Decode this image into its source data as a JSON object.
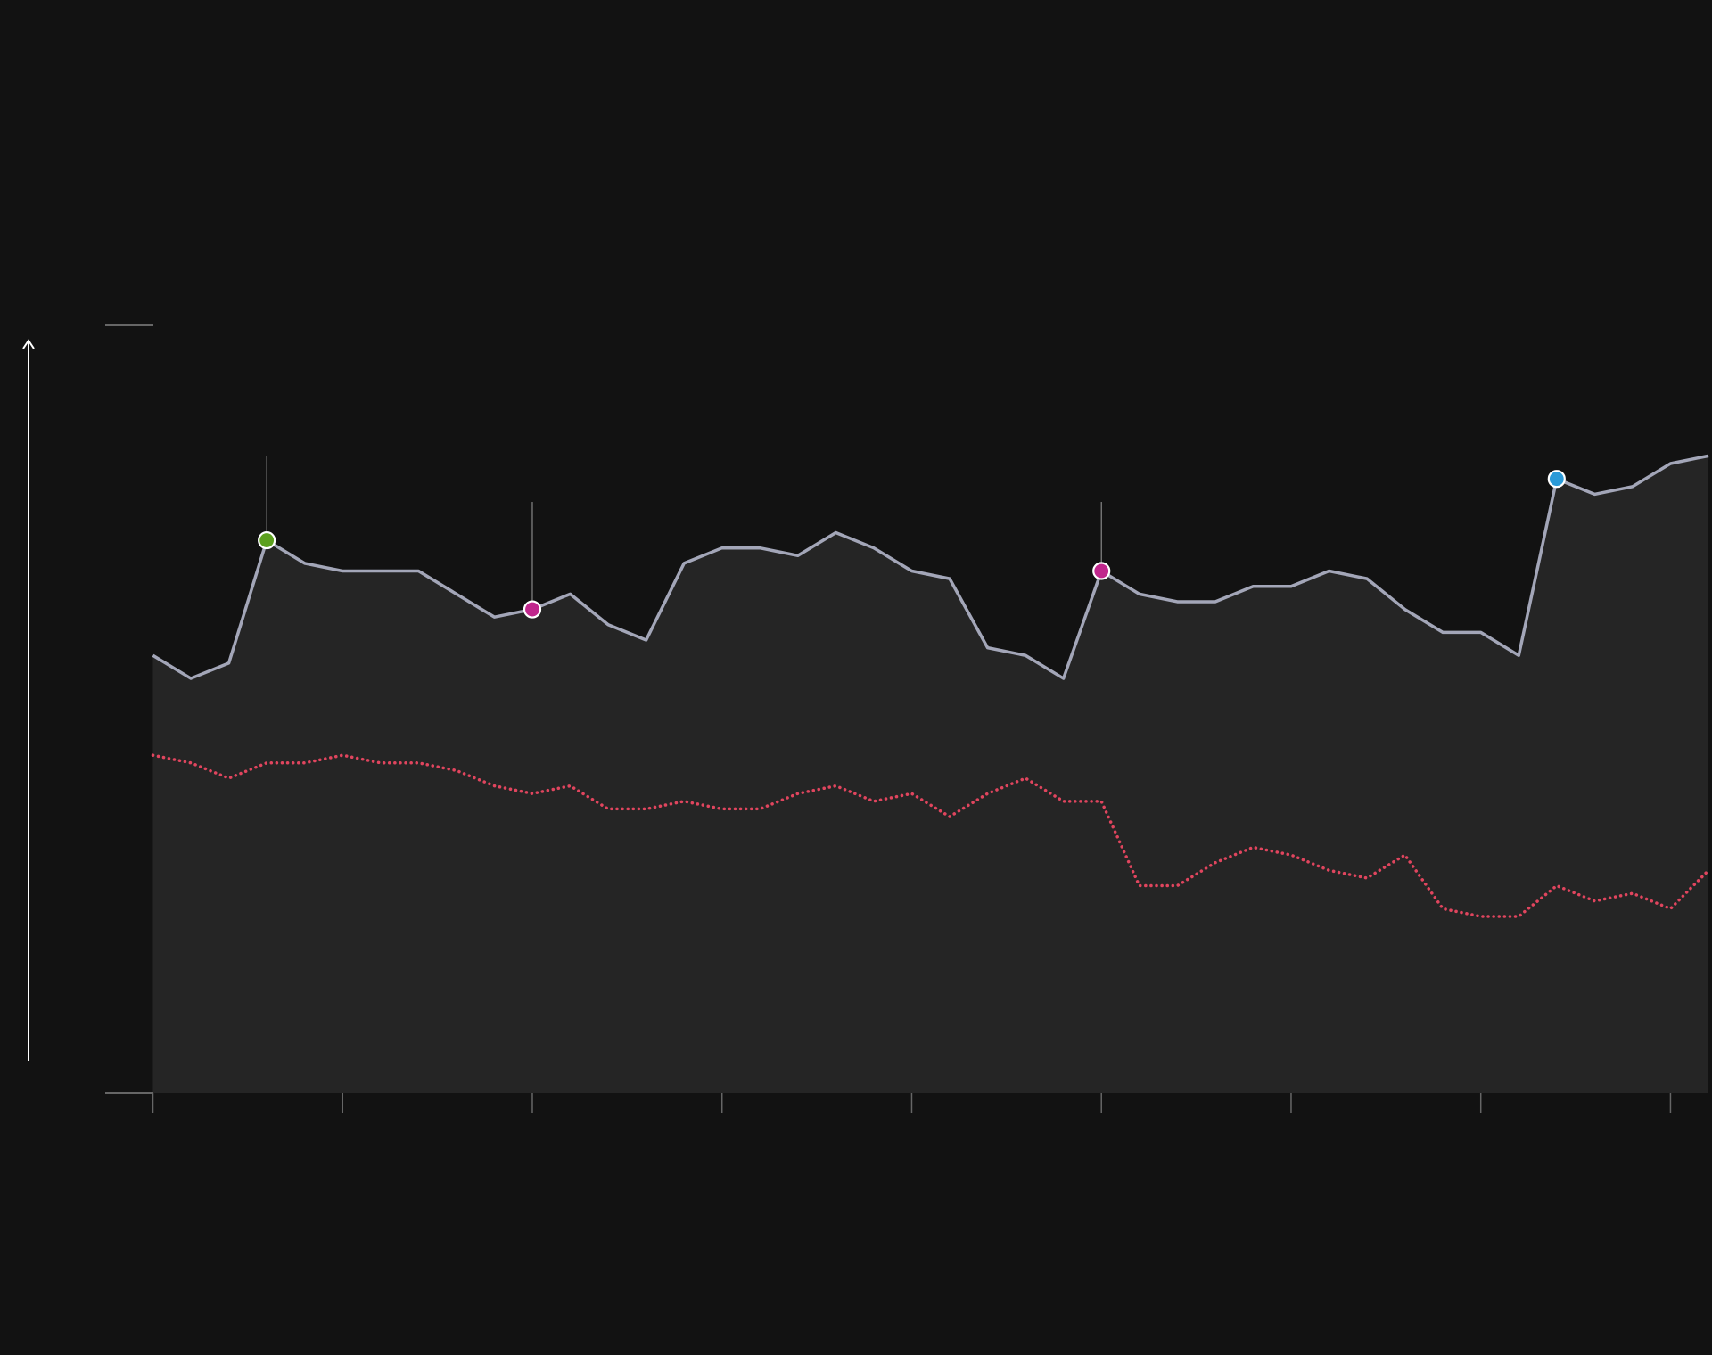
{
  "chart_data": {
    "type": "line",
    "x": [
      0,
      1,
      2,
      3,
      4,
      5,
      6,
      7,
      8,
      9,
      10,
      11,
      12,
      13,
      14,
      15,
      16,
      17,
      18,
      19,
      20,
      21,
      22,
      23,
      24,
      25,
      26,
      27,
      28,
      29,
      30,
      31,
      32,
      33,
      34,
      35,
      36,
      37,
      38,
      39,
      40,
      41
    ],
    "series": [
      {
        "color": "#a3a6b8",
        "fill": "#252525",
        "style": "solid",
        "values": [
          57,
          54,
          56,
          72,
          69,
          68,
          68,
          68,
          65,
          62,
          63,
          65,
          61,
          59,
          69,
          71,
          71,
          70,
          73,
          71,
          68,
          67,
          58,
          57,
          54,
          68,
          65,
          64,
          64,
          66,
          66,
          68,
          67,
          63,
          60,
          60,
          57,
          80,
          78,
          79,
          82,
          83
        ]
      },
      {
        "color": "#e0455e",
        "style": "dotted",
        "values": [
          44,
          43,
          41,
          43,
          43,
          44,
          43,
          43,
          42,
          40,
          39,
          40,
          37,
          37,
          38,
          37,
          37,
          39,
          40,
          38,
          39,
          36,
          39,
          41,
          38,
          38,
          27,
          27,
          30,
          32,
          31,
          29,
          28,
          31,
          24,
          23,
          23,
          27,
          25,
          26,
          24,
          29
        ]
      }
    ],
    "markers": [
      {
        "x": 3,
        "color": "#5ca01e",
        "stem_top": 83
      },
      {
        "x": 10,
        "color": "#c0268c",
        "stem_top": 77
      },
      {
        "x": 25,
        "color": "#c0268c",
        "stem_top": 77
      },
      {
        "x": 37,
        "color": "#2a9ad8"
      }
    ],
    "xlim": [
      0,
      41
    ],
    "xticks": [
      0,
      5,
      10,
      15,
      20,
      25,
      30,
      35,
      40
    ],
    "ylim": [
      0,
      100
    ],
    "yticks": [
      0,
      100
    ]
  }
}
